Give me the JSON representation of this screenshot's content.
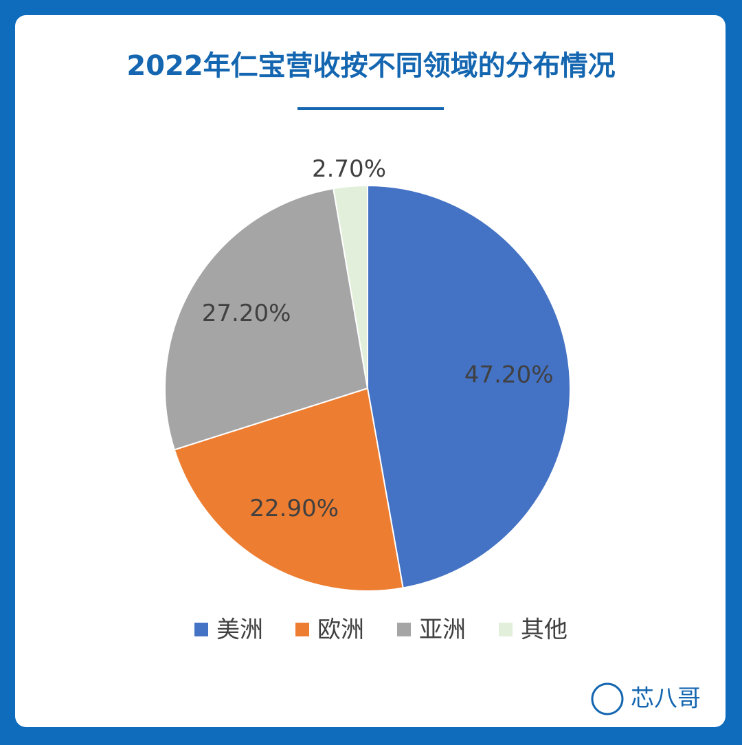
{
  "chart_data": {
    "type": "pie",
    "title": "2022年仁宝营收按不同领域的分布情况",
    "categories": [
      "美洲",
      "欧洲",
      "亚洲",
      "其他"
    ],
    "values": [
      47.2,
      22.9,
      27.2,
      2.7
    ],
    "value_labels": [
      "47.20%",
      "22.90%",
      "27.20%",
      "2.70%"
    ],
    "colors": [
      "#4472c4",
      "#ed7d31",
      "#a5a5a5",
      "#e2efda"
    ],
    "legend": "bottom"
  },
  "brand": "芯八哥"
}
